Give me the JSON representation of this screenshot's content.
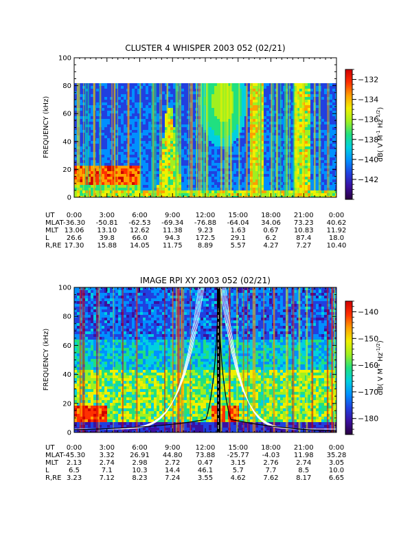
{
  "chart_data": [
    {
      "type": "heatmap",
      "title": "CLUSTER 4 WHISPER 2003 052 (02/21)",
      "ylabel": "FREQUENCY (kHz)",
      "ylim": [
        0,
        100
      ],
      "yticks": [
        0,
        20,
        40,
        60,
        80,
        100
      ],
      "data_ylim": [
        0,
        80
      ],
      "xlim_hours": [
        0,
        24
      ],
      "colorbar": {
        "label": "dB( V M⁻¹ Hz⁻¹ᐟ²)",
        "label_parts": [
          "dB( V M",
          "-1",
          " Hz",
          "-1/2",
          ")"
        ],
        "ticks": [
          -132,
          -134,
          -136,
          -138,
          -140,
          -142
        ],
        "range": [
          -144,
          -131
        ]
      },
      "orbit_table": {
        "rows": [
          {
            "label": "UT",
            "values": [
              "0:00",
              "3:00",
              "6:00",
              "9:00",
              "12:00",
              "15:00",
              "18:00",
              "21:00",
              "0:00"
            ]
          },
          {
            "label": "MLAT",
            "values": [
              "-36.30",
              "-50.81",
              "-62.53",
              "-69.34",
              "-76.88",
              "-64.04",
              "34.06",
              "73.23",
              "40.62"
            ]
          },
          {
            "label": "MLT",
            "values": [
              "13.06",
              "13.10",
              "12.62",
              "11.38",
              "9.23",
              "1.63",
              "0.67",
              "10.83",
              "11.92"
            ]
          },
          {
            "label": "L",
            "values": [
              "26.6",
              "39.8",
              "66.0",
              "94.3",
              "172.5",
              "29.1",
              "6.2",
              "87.4",
              "18.0"
            ]
          },
          {
            "label": "R,RE",
            "values": [
              "17.30",
              "15.88",
              "14.05",
              "11.75",
              "8.89",
              "5.57",
              "4.27",
              "7.27",
              "10.40"
            ]
          }
        ]
      }
    },
    {
      "type": "heatmap",
      "title": "IMAGE RPI XY 2003 052 (02/21)",
      "ylabel": "FREQUENCY (kHz)",
      "ylim": [
        0,
        100
      ],
      "yticks": [
        0,
        20,
        40,
        60,
        80,
        100
      ],
      "data_ylim": [
        0,
        100
      ],
      "xlim_hours": [
        0,
        24
      ],
      "colorbar": {
        "label": "dB( V M⁻¹ Hz⁻¹ᐟ²)",
        "label_parts": [
          "dB( V M",
          "-1",
          " Hz",
          "-1/2",
          ")"
        ],
        "ticks": [
          -140,
          -150,
          -160,
          -170,
          -180
        ],
        "range": [
          -186,
          -136
        ]
      },
      "orbit_table": {
        "rows": [
          {
            "label": "UT",
            "values": [
              "0:00",
              "3:00",
              "6:00",
              "9:00",
              "12:00",
              "15:00",
              "18:00",
              "21:00",
              "0:00"
            ]
          },
          {
            "label": "MLAT",
            "values": [
              "-45.30",
              "3.32",
              "26.91",
              "44.80",
              "73.88",
              "-25.77",
              "-4.03",
              "11.98",
              "35.28"
            ]
          },
          {
            "label": "MLT",
            "values": [
              "2.13",
              "2.74",
              "2.98",
              "2.72",
              "0.47",
              "3.15",
              "2.76",
              "2.74",
              "3.05"
            ]
          },
          {
            "label": "L",
            "values": [
              "6.5",
              "7.1",
              "10.3",
              "14.4",
              "46.1",
              "5.7",
              "7.7",
              "8.5",
              "10.0"
            ]
          },
          {
            "label": "R,RE",
            "values": [
              "3.23",
              "7.12",
              "8.23",
              "7.24",
              "3.55",
              "4.62",
              "7.62",
              "8.17",
              "6.65"
            ]
          }
        ]
      }
    }
  ],
  "colormap": [
    "#2a0040",
    "#3b10a0",
    "#2040e0",
    "#0090ff",
    "#00d0e0",
    "#20e080",
    "#a0f020",
    "#f0f000",
    "#ffa000",
    "#ff3000",
    "#d00000"
  ]
}
